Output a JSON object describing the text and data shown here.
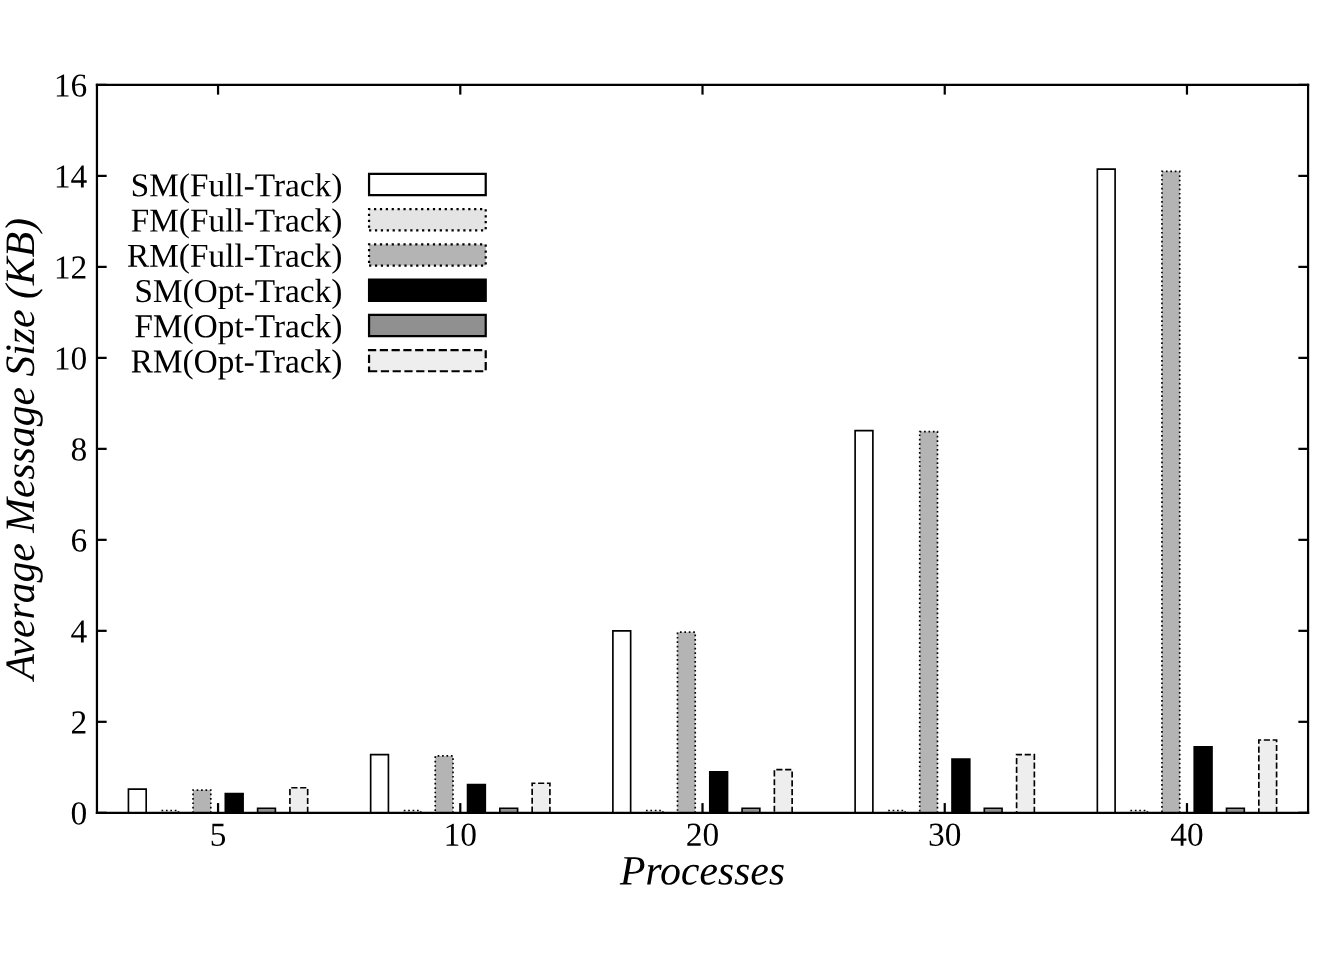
{
  "chart_data": {
    "type": "bar",
    "xlabel": "Processes",
    "ylabel": "Average Message Size (KB)",
    "categories": [
      "5",
      "10",
      "20",
      "30",
      "40"
    ],
    "series": [
      {
        "name": "SM(Full-Track)",
        "color": "#ffffff",
        "values": [
          0.52,
          1.28,
          4.0,
          8.4,
          14.15
        ]
      },
      {
        "name": "FM(Full-Track)",
        "color": "#e4e4e4",
        "values": [
          0.05,
          0.05,
          0.05,
          0.05,
          0.05
        ]
      },
      {
        "name": "RM(Full-Track)",
        "color": "#b4b4b4",
        "values": [
          0.5,
          1.25,
          3.97,
          8.38,
          14.1
        ]
      },
      {
        "name": "SM(Opt-Track)",
        "color": "#000000",
        "values": [
          0.42,
          0.62,
          0.9,
          1.18,
          1.45
        ]
      },
      {
        "name": "FM(Opt-Track)",
        "color": "#909090",
        "values": [
          0.1,
          0.1,
          0.1,
          0.1,
          0.1
        ]
      },
      {
        "name": "RM(Opt-Track)",
        "color": "#eeeeee",
        "values": [
          0.55,
          0.65,
          0.95,
          1.28,
          1.6
        ]
      }
    ],
    "ylim": [
      0,
      16
    ],
    "yticks": [
      0,
      2,
      4,
      6,
      8,
      10,
      12,
      14,
      16
    ],
    "grid": false,
    "legend": "top left"
  }
}
